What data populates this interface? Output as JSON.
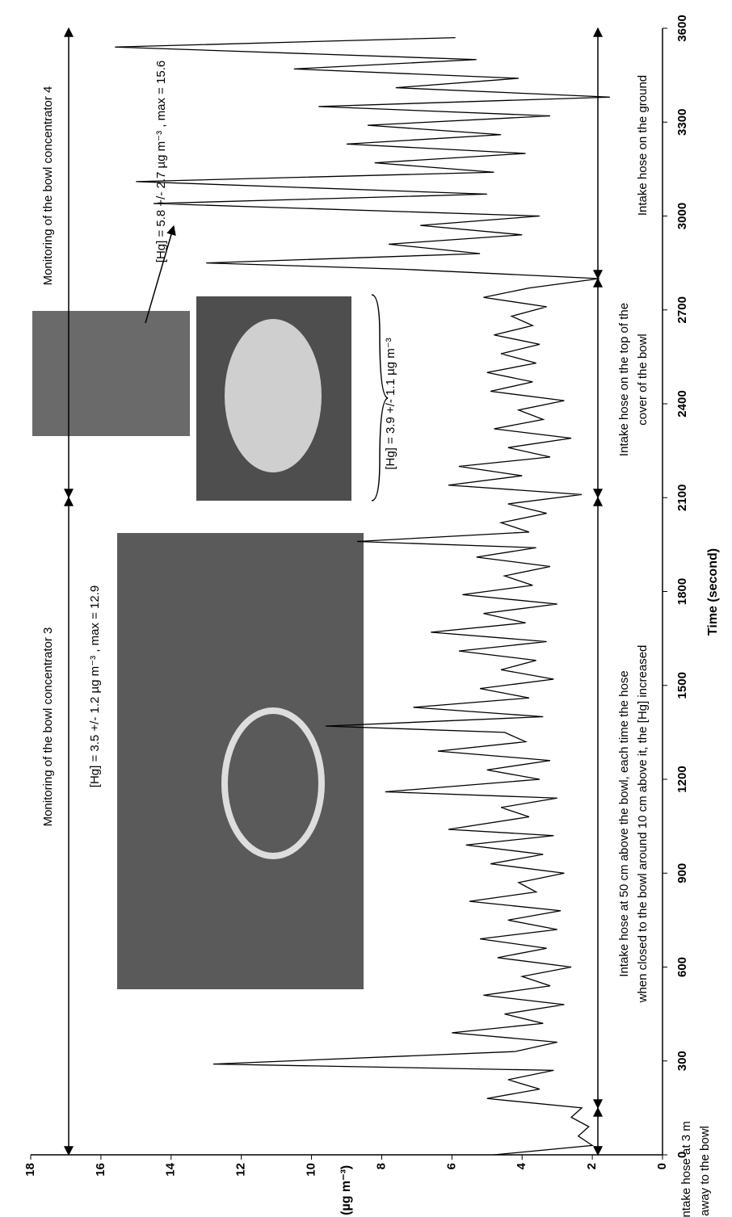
{
  "chart_data": {
    "type": "line",
    "xlabel": "Time (second)",
    "ylabel": "[Hg] (µg m⁻³)",
    "xlim": [
      0,
      3600
    ],
    "xticks": [
      0,
      300,
      600,
      900,
      1200,
      1500,
      1800,
      2100,
      2400,
      2700,
      3000,
      3300,
      3600
    ],
    "ylim": [
      0,
      18
    ],
    "yticks": [
      0,
      2,
      4,
      6,
      8,
      10,
      12,
      14,
      16,
      18
    ],
    "x": [
      0,
      30,
      60,
      90,
      120,
      150,
      180,
      210,
      240,
      270,
      290,
      330,
      360,
      390,
      420,
      450,
      480,
      510,
      540,
      570,
      600,
      630,
      660,
      690,
      720,
      750,
      780,
      810,
      840,
      870,
      900,
      930,
      960,
      990,
      1020,
      1040,
      1080,
      1110,
      1140,
      1160,
      1200,
      1230,
      1260,
      1290,
      1320,
      1350,
      1370,
      1400,
      1430,
      1460,
      1490,
      1520,
      1550,
      1580,
      1610,
      1640,
      1670,
      1700,
      1730,
      1760,
      1790,
      1820,
      1850,
      1880,
      1910,
      1940,
      1960,
      1990,
      2020,
      2050,
      2080,
      2110,
      2140,
      2170,
      2200,
      2230,
      2260,
      2290,
      2320,
      2350,
      2380,
      2410,
      2440,
      2470,
      2500,
      2530,
      2560,
      2590,
      2620,
      2650,
      2680,
      2710,
      2740,
      2770,
      2800,
      2830,
      2850,
      2880,
      2910,
      2940,
      2970,
      3000,
      3040,
      3070,
      3110,
      3140,
      3170,
      3200,
      3230,
      3260,
      3290,
      3320,
      3350,
      3380,
      3410,
      3440,
      3470,
      3500,
      3540,
      3570
    ],
    "series": [
      {
        "color": "#000000",
        "values": [
          4.8,
          2.0,
          2.4,
          2.1,
          2.6,
          2.3,
          5.0,
          3.5,
          4.4,
          3.1,
          12.8,
          4.2,
          3.0,
          6.0,
          3.4,
          4.5,
          2.8,
          5.1,
          3.2,
          4.0,
          2.6,
          4.7,
          3.3,
          5.2,
          3.0,
          4.4,
          2.9,
          5.5,
          3.6,
          4.1,
          2.8,
          4.9,
          3.4,
          5.6,
          3.1,
          6.1,
          3.8,
          4.6,
          3.0,
          7.9,
          3.5,
          5.0,
          3.2,
          6.4,
          3.9,
          4.5,
          9.6,
          3.4,
          7.1,
          3.8,
          5.2,
          3.1,
          4.6,
          3.6,
          5.8,
          3.3,
          6.6,
          3.9,
          5.1,
          3.0,
          5.7,
          3.7,
          4.5,
          3.2,
          5.3,
          3.6,
          8.7,
          3.8,
          4.6,
          3.3,
          4.4,
          2.3,
          6.1,
          4.0,
          5.8,
          3.2,
          4.4,
          2.6,
          4.8,
          3.4,
          4.1,
          2.8,
          4.9,
          3.7,
          5.0,
          3.6,
          4.6,
          3.5,
          4.8,
          3.7,
          4.3,
          3.3,
          5.1,
          3.8,
          1.8,
          7.4,
          13.0,
          5.2,
          7.8,
          4.0,
          6.9,
          3.5,
          14.5,
          5.0,
          15.0,
          4.8,
          8.2,
          3.9,
          9.0,
          4.6,
          8.4,
          3.2,
          9.8,
          1.5,
          7.6,
          4.1,
          10.5,
          5.3,
          15.6,
          5.9
        ]
      }
    ],
    "annotations": [
      "Monitoring of the bowl concentrator 3",
      "[Hg] = 3.5 +/- 1.2 µg m⁻³ , max =  12.9",
      "Monitoring of the bowl concentrator 4",
      "[Hg] = 5.8 +/- 2.7 µg m⁻³ , max =  15.6",
      "[Hg] = 3.9 +/- 1.1 µg m⁻³",
      "Intake hose at 3 m",
      "away to the bowl",
      "Intake hose at 50 cm above the bowl, each time the hose",
      "when closed to the bowl around 10 cm above it, the [Hg] increased",
      "Intake hose on the top of the",
      "cover of the bowl",
      "Intake hose on the ground"
    ]
  }
}
